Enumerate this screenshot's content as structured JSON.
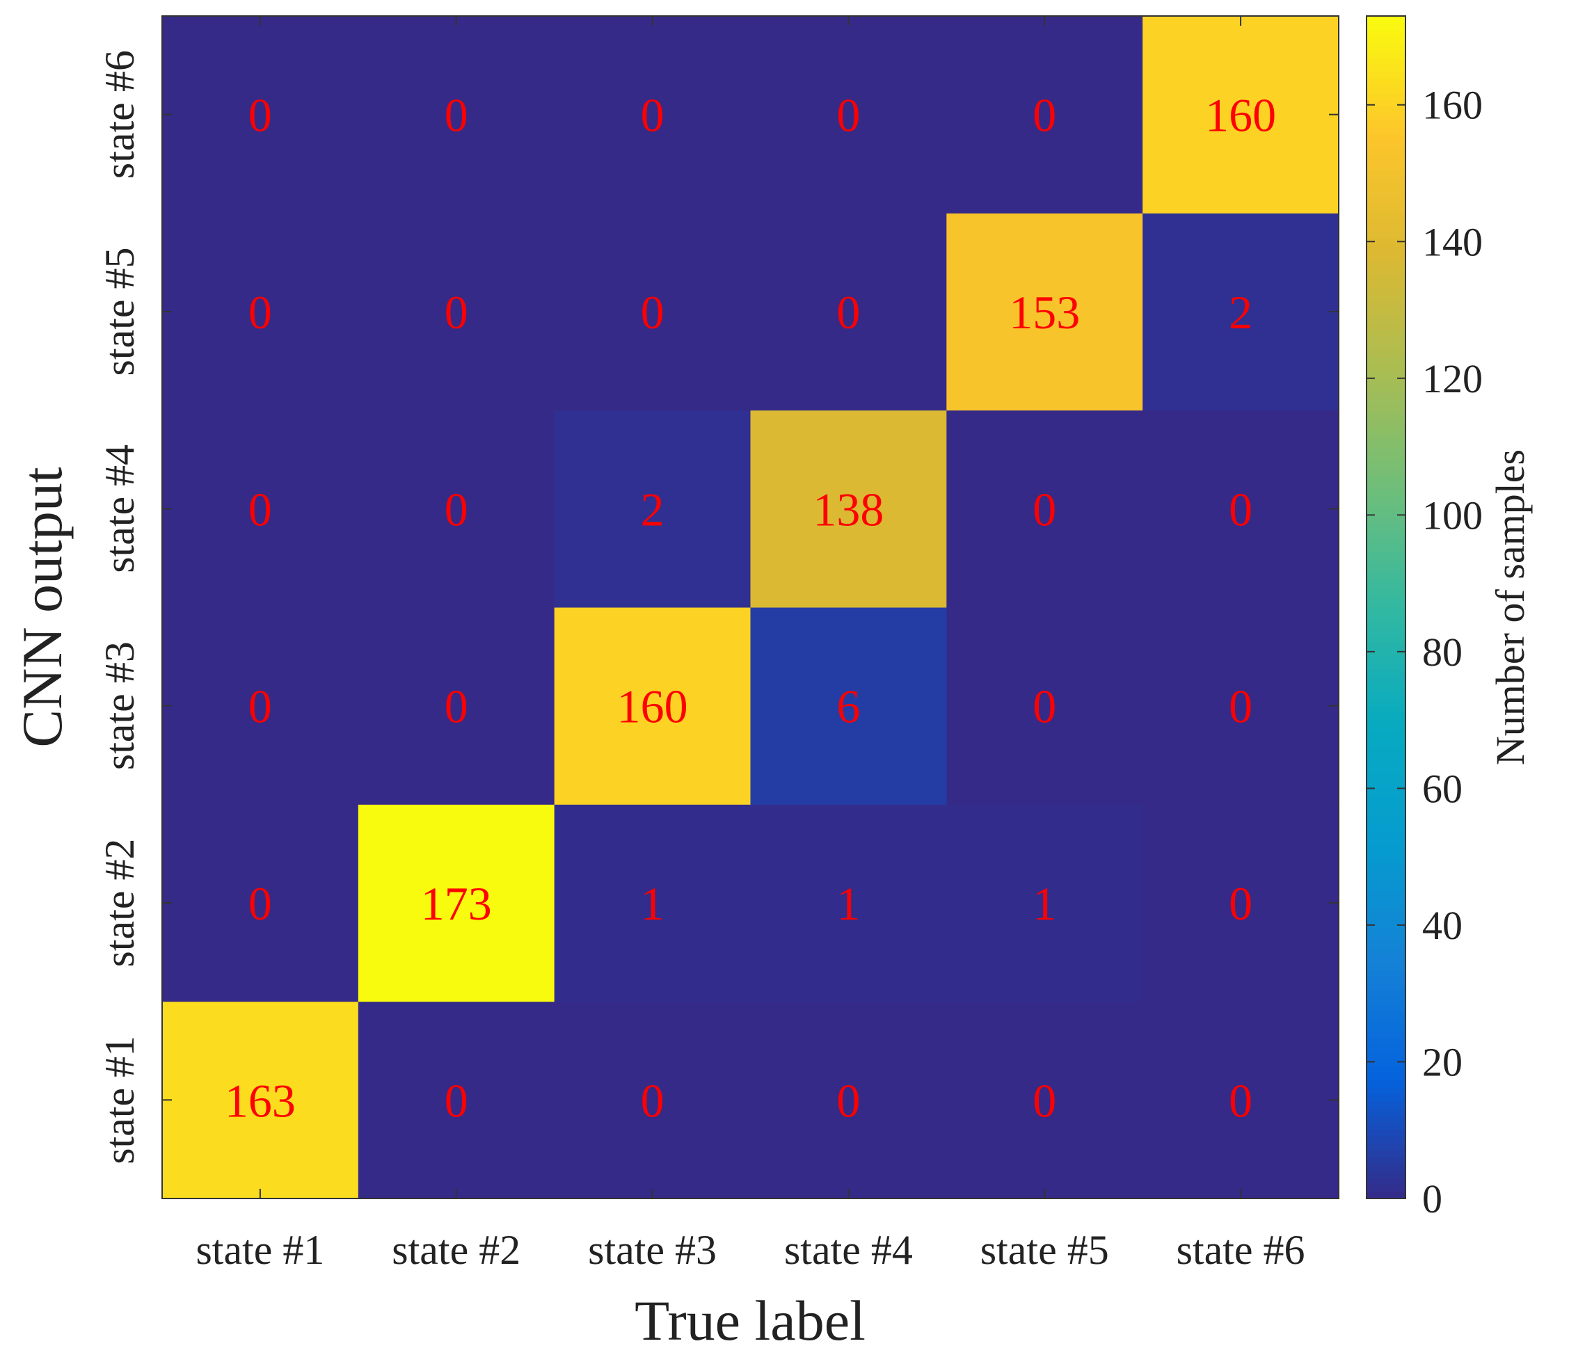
{
  "chart_data": {
    "type": "heatmap",
    "title": "",
    "xlabel": "True label",
    "ylabel": "CNN output",
    "x_categories": [
      "state #1",
      "state #2",
      "state #3",
      "state #4",
      "state #5",
      "state #6"
    ],
    "y_categories": [
      "state #1",
      "state #2",
      "state #3",
      "state #4",
      "state #5",
      "state #6"
    ],
    "y_order": "bottom-to-top",
    "matrix": [
      [
        163,
        0,
        0,
        0,
        0,
        0
      ],
      [
        0,
        173,
        1,
        1,
        1,
        0
      ],
      [
        0,
        0,
        160,
        6,
        0,
        0
      ],
      [
        0,
        0,
        2,
        138,
        0,
        0
      ],
      [
        0,
        0,
        0,
        0,
        153,
        2
      ],
      [
        0,
        0,
        0,
        0,
        0,
        160
      ]
    ],
    "matrix_note": "matrix[i][j] = value at CNN output y_categories[i], true label x_categories[j]",
    "colorbar": {
      "label": "Number of samples",
      "range": [
        0,
        173
      ],
      "ticks": [
        0,
        20,
        40,
        60,
        80,
        100,
        120,
        140,
        160
      ],
      "colormap": "parula"
    },
    "annotation_color": "#ff0000"
  }
}
